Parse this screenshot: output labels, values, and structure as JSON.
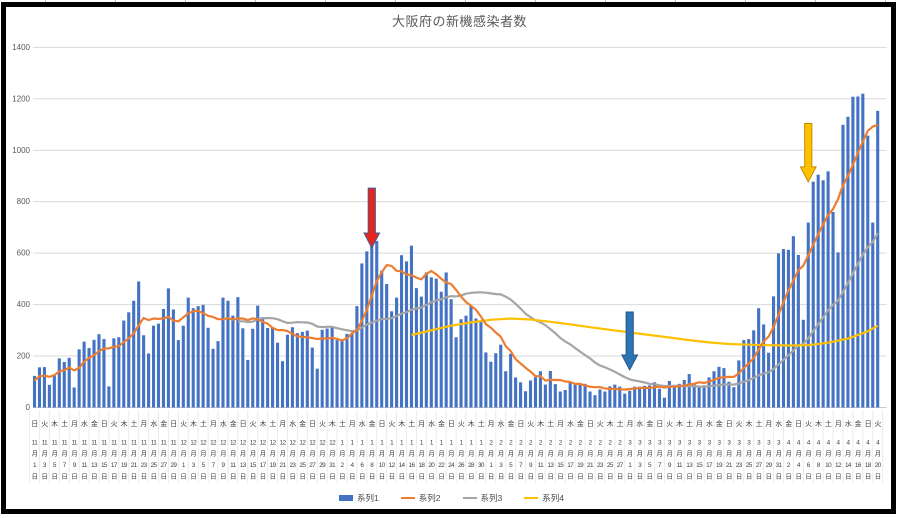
{
  "title": "大阪府の新機感染者数",
  "y_axis_ticks": [
    "0",
    "200",
    "400",
    "600",
    "800",
    "1000",
    "1200",
    "1400"
  ],
  "legend": [
    {
      "label": "系列1",
      "color": "#4472C4",
      "swatch": "bar"
    },
    {
      "label": "系列2",
      "color": "#ED7D31",
      "swatch": "line"
    },
    {
      "label": "系列3",
      "color": "#A5A5A5",
      "swatch": "line"
    },
    {
      "label": "系列4",
      "color": "#FFC000",
      "swatch": "line"
    }
  ],
  "chart_data": {
    "type": "bar",
    "subtype": "bar+line combo (daily bars with moving-average lines)",
    "title": "大阪府の新機感染者数",
    "ylim": [
      0,
      1400
    ],
    "y_gridline_step": 200,
    "grid": "horizontal",
    "legend_position": "bottom",
    "x_range": "2020-11-01 to 2021-04-20, daily bars, axis labeled every 2 days",
    "x_labels": [
      [
        "日",
        11,
        1
      ],
      [
        "火",
        11,
        3
      ],
      [
        "木",
        11,
        5
      ],
      [
        "土",
        11,
        7
      ],
      [
        "月",
        11,
        9
      ],
      [
        "水",
        11,
        11
      ],
      [
        "金",
        11,
        13
      ],
      [
        "日",
        11,
        15
      ],
      [
        "火",
        11,
        17
      ],
      [
        "木",
        11,
        19
      ],
      [
        "土",
        11,
        21
      ],
      [
        "月",
        11,
        23
      ],
      [
        "水",
        11,
        25
      ],
      [
        "金",
        11,
        27
      ],
      [
        "日",
        11,
        29
      ],
      [
        "火",
        12,
        1
      ],
      [
        "木",
        12,
        3
      ],
      [
        "土",
        12,
        5
      ],
      [
        "月",
        12,
        7
      ],
      [
        "水",
        12,
        9
      ],
      [
        "金",
        12,
        11
      ],
      [
        "日",
        12,
        13
      ],
      [
        "火",
        12,
        15
      ],
      [
        "木",
        12,
        17
      ],
      [
        "土",
        12,
        19
      ],
      [
        "月",
        12,
        21
      ],
      [
        "水",
        12,
        23
      ],
      [
        "金",
        12,
        25
      ],
      [
        "日",
        12,
        27
      ],
      [
        "火",
        12,
        29
      ],
      [
        "木",
        12,
        31
      ],
      [
        "土",
        1,
        2
      ],
      [
        "月",
        1,
        4
      ],
      [
        "水",
        1,
        6
      ],
      [
        "金",
        1,
        8
      ],
      [
        "日",
        1,
        10
      ],
      [
        "火",
        1,
        12
      ],
      [
        "木",
        1,
        14
      ],
      [
        "土",
        1,
        16
      ],
      [
        "月",
        1,
        18
      ],
      [
        "水",
        1,
        20
      ],
      [
        "金",
        1,
        22
      ],
      [
        "日",
        1,
        24
      ],
      [
        "火",
        1,
        26
      ],
      [
        "木",
        1,
        28
      ],
      [
        "土",
        1,
        30
      ],
      [
        "月",
        2,
        1
      ],
      [
        "水",
        2,
        3
      ],
      [
        "金",
        2,
        5
      ],
      [
        "日",
        2,
        7
      ],
      [
        "火",
        2,
        9
      ],
      [
        "木",
        2,
        11
      ],
      [
        "土",
        2,
        13
      ],
      [
        "月",
        2,
        15
      ],
      [
        "水",
        2,
        17
      ],
      [
        "金",
        2,
        19
      ],
      [
        "日",
        2,
        21
      ],
      [
        "火",
        2,
        23
      ],
      [
        "木",
        2,
        25
      ],
      [
        "土",
        2,
        27
      ],
      [
        "月",
        3,
        1
      ],
      [
        "水",
        3,
        3
      ],
      [
        "金",
        3,
        5
      ],
      [
        "日",
        3,
        7
      ],
      [
        "火",
        3,
        9
      ],
      [
        "木",
        3,
        11
      ],
      [
        "土",
        3,
        13
      ],
      [
        "月",
        3,
        15
      ],
      [
        "水",
        3,
        17
      ],
      [
        "金",
        3,
        19
      ],
      [
        "日",
        3,
        21
      ],
      [
        "火",
        3,
        23
      ],
      [
        "木",
        3,
        25
      ],
      [
        "土",
        3,
        27
      ],
      [
        "月",
        3,
        29
      ],
      [
        "水",
        3,
        31
      ],
      [
        "金",
        4,
        2
      ],
      [
        "日",
        4,
        4
      ],
      [
        "火",
        4,
        6
      ],
      [
        "木",
        4,
        8
      ],
      [
        "土",
        4,
        10
      ],
      [
        "月",
        4,
        12
      ],
      [
        "水",
        4,
        14
      ],
      [
        "金",
        4,
        16
      ],
      [
        "日",
        4,
        18
      ],
      [
        "火",
        4,
        20
      ]
    ],
    "series": [
      {
        "name": "系列1",
        "type": "bar",
        "color": "#4472C4",
        "values": [
          123,
          156,
          157,
          88,
          125,
          191,
          177,
          193,
          78,
          226,
          256,
          231,
          263,
          285,
          266,
          82,
          269,
          273,
          338,
          370,
          415,
          490,
          281,
          210,
          318,
          326,
          383,
          463,
          381,
          262,
          318,
          427,
          386,
          394,
          399,
          310,
          228,
          258,
          427,
          415,
          357,
          429,
          308,
          185,
          306,
          396,
          351,
          309,
          311,
          252,
          180,
          283,
          312,
          289,
          294,
          299,
          233,
          151,
          302,
          307,
          313,
          262,
          258,
          286,
          286,
          394,
          560,
          607,
          654,
          647,
          532,
          480,
          374,
          427,
          592,
          568,
          629,
          464,
          431,
          525,
          506,
          501,
          450,
          525,
          421,
          273,
          343,
          357,
          397,
          346,
          338,
          214,
          178,
          211,
          244,
          141,
          209,
          117,
          98,
          63,
          105,
          118,
          141,
          89,
          142,
          91,
          62,
          68,
          100,
          91,
          91,
          92,
          62,
          48,
          70,
          62,
          82,
          89,
          81,
          54,
          65,
          81,
          81,
          84,
          86,
          98,
          73,
          38,
          103,
          84,
          92,
          107,
          130,
          93,
          78,
          86,
          117,
          141,
          158,
          153,
          100,
          79,
          183,
          262,
          266,
          300,
          386,
          323,
          213,
          432,
          599,
          616,
          613,
          666,
          593,
          341,
          719,
          878,
          905,
          883,
          918,
          760,
          603,
          1099,
          1130,
          1208,
          1209,
          1220,
          1057,
          719,
          1153
        ]
      },
      {
        "name": "系列2",
        "type": "line",
        "color": "#ED7D31",
        "derivation": "7-day trailing moving average of 系列1",
        "window_days": 7,
        "pre_window_values": [
          43,
          142,
          117,
          82,
          86,
          143
        ]
      },
      {
        "name": "系列3",
        "type": "line",
        "color": "#A5A5A5",
        "derivation": "30-day trailing moving average of 系列1",
        "window_days": 30,
        "draw_from_index": 41
      },
      {
        "name": "系列4",
        "type": "line",
        "color": "#FFC000",
        "derivation": "long-period trend line, digitized points [day_index, value]",
        "points": [
          [
            76,
            282
          ],
          [
            80,
            300
          ],
          [
            84,
            318
          ],
          [
            88,
            331
          ],
          [
            92,
            341
          ],
          [
            96,
            346
          ],
          [
            100,
            342
          ],
          [
            104,
            333
          ],
          [
            108,
            323
          ],
          [
            112,
            312
          ],
          [
            116,
            302
          ],
          [
            120,
            292
          ],
          [
            124,
            282
          ],
          [
            128,
            272
          ],
          [
            132,
            262
          ],
          [
            136,
            253
          ],
          [
            140,
            247
          ],
          [
            144,
            244
          ],
          [
            148,
            242
          ],
          [
            152,
            241
          ],
          [
            156,
            242
          ],
          [
            160,
            252
          ],
          [
            164,
            268
          ],
          [
            168,
            296
          ],
          [
            170,
            318
          ]
        ]
      }
    ],
    "arrows": [
      {
        "name": "red-arrow",
        "fill": "#E5261F",
        "stroke": "#3A5F9E",
        "points_to_date": "1月8日",
        "index": 68,
        "top_value": 853,
        "tip_value": 620
      },
      {
        "name": "blue-arrow",
        "fill": "#2E74B5",
        "stroke": "#24578B",
        "points_to_date": "3月1日",
        "index": 120,
        "top_value": 371,
        "tip_value": 146
      },
      {
        "name": "yellow-arrow",
        "fill": "#FFC000",
        "stroke": "#BF9000",
        "points_to_date": "4月6日",
        "index": 156,
        "top_value": 1104,
        "tip_value": 877
      }
    ]
  }
}
